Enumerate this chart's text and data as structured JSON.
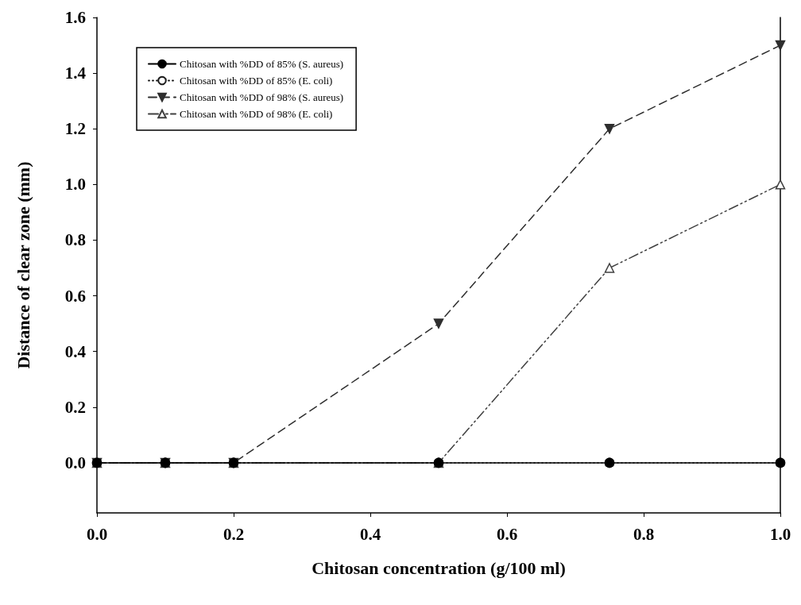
{
  "chart_data": {
    "type": "line",
    "xlabel": "Chitosan concentration (g/100 ml)",
    "ylabel": "Distance of clear zone (mm)",
    "x": [
      0,
      0.1,
      0.2,
      0.5,
      0.75,
      1.0
    ],
    "xlim": [
      0,
      1
    ],
    "xticks": [
      {
        "value": 0,
        "label": "0.0"
      },
      0.2,
      0.4,
      0.6,
      0.8,
      {
        "value": 1,
        "label": "1.0"
      }
    ],
    "ylim": [
      -0.18,
      1.6
    ],
    "yticks": [
      {
        "value": 0,
        "label": "0.0"
      },
      0.2,
      0.4,
      0.6,
      0.8,
      {
        "value": 1,
        "label": "1.0"
      },
      1.2,
      1.4,
      1.6
    ],
    "grid": false,
    "legend": "top left",
    "series": [
      {
        "name": "Chitosan with %DD of 85% (S. aureus)",
        "color": "#000000",
        "marker": "circle",
        "line_style": "solid",
        "values": [
          0,
          0,
          0,
          0,
          0,
          0
        ]
      },
      {
        "name": "Chitosan with %DD of 85% (E. coli)",
        "color": "#1a1a1a",
        "marker": "circle",
        "line_style": "dotted",
        "values": [
          0,
          0,
          0,
          0,
          0,
          0
        ]
      },
      {
        "name": "Chitosan with %DD of 98% (S. aureus)",
        "color": "#2e2e2e",
        "marker": "triangle",
        "line_style": "dashed",
        "values": [
          0,
          0,
          0,
          0.5,
          1.2,
          1.5
        ]
      },
      {
        "name": "Chitosan with %DD of 98% (E. coli)",
        "color": "#404040",
        "marker": "triangle",
        "line_style": "dashed",
        "values": [
          0,
          0,
          0,
          0,
          0.7,
          1.0
        ]
      }
    ]
  }
}
